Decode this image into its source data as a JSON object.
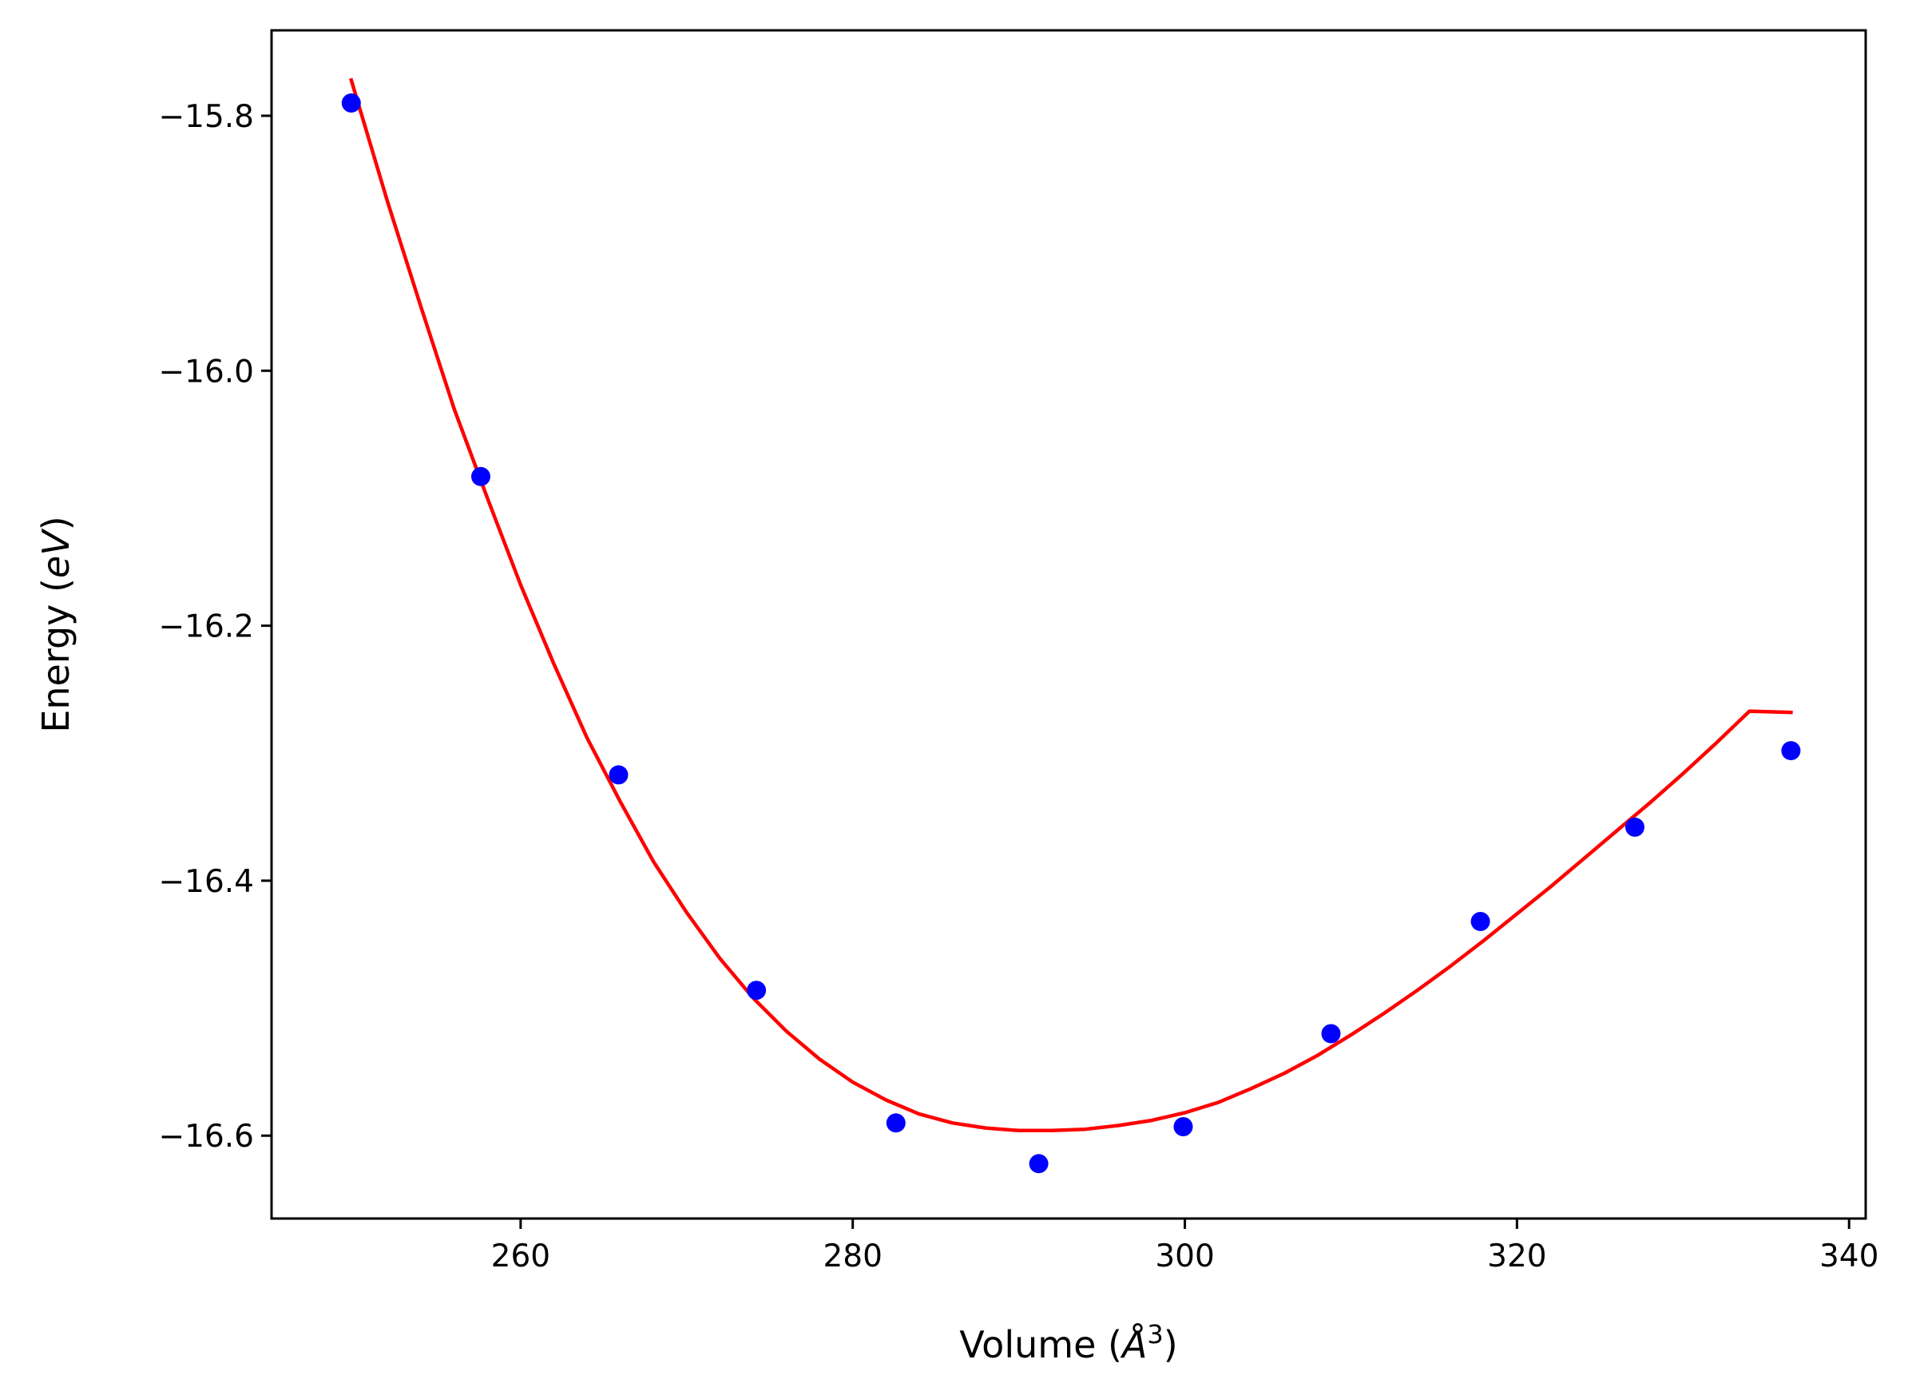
{
  "chart_data": {
    "type": "scatter",
    "title": "",
    "xlabel_parts": [
      "Volume (",
      "Å",
      "3",
      ")"
    ],
    "ylabel_parts": [
      "Energy (",
      "eV",
      ")"
    ],
    "xlim": [
      245.0,
      341.0
    ],
    "ylim": [
      -16.665,
      -15.733
    ],
    "xticks": [
      260,
      280,
      300,
      320,
      340
    ],
    "yticks": [
      -15.8,
      -16.0,
      -16.2,
      -16.4,
      -16.6
    ],
    "xtick_labels": [
      "260",
      "280",
      "300",
      "320",
      "340"
    ],
    "ytick_labels": [
      "−15.8",
      "−16.0",
      "−16.2",
      "−16.4",
      "−16.6"
    ],
    "grid": false,
    "legend": "none",
    "series": [
      {
        "kind": "points",
        "color": "#0000ff",
        "x": [
          249.8,
          257.6,
          265.9,
          274.2,
          282.6,
          291.2,
          299.9,
          308.8,
          317.8,
          327.1,
          336.5
        ],
        "y": [
          -15.79,
          -16.083,
          -16.317,
          -16.486,
          -16.59,
          -16.622,
          -16.593,
          -16.52,
          -16.432,
          -16.358,
          -16.298
        ]
      },
      {
        "kind": "fit-curve",
        "color": "#ff0000",
        "x": [
          249.8,
          252,
          254,
          256,
          258,
          260,
          262,
          264,
          266,
          268,
          270,
          272,
          274,
          276,
          278,
          280,
          282,
          284,
          286,
          288,
          290,
          292,
          294,
          296,
          298,
          300,
          302,
          304,
          306,
          308,
          310,
          312,
          314,
          316,
          318,
          320,
          322,
          324,
          326,
          328,
          330,
          332,
          334,
          336.5
        ],
        "y": [
          -15.772,
          -15.868,
          -15.95,
          -16.03,
          -16.1,
          -16.168,
          -16.23,
          -16.288,
          -16.338,
          -16.385,
          -16.425,
          -16.461,
          -16.492,
          -16.518,
          -16.54,
          -16.558,
          -16.572,
          -16.583,
          -16.59,
          -16.594,
          -16.596,
          -16.596,
          -16.595,
          -16.592,
          -16.588,
          -16.582,
          -16.574,
          -16.563,
          -16.551,
          -16.537,
          -16.521,
          -16.504,
          -16.486,
          -16.467,
          -16.447,
          -16.426,
          -16.405,
          -16.383,
          -16.361,
          -16.339,
          -16.316,
          -16.292,
          -16.267,
          -16.268
        ]
      }
    ]
  }
}
